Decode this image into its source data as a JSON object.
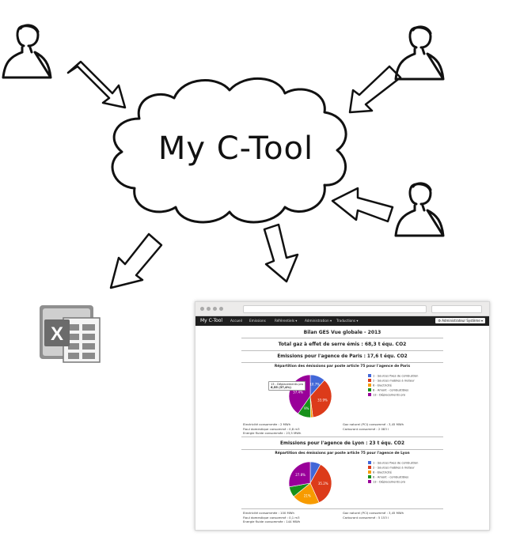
{
  "diagram": {
    "title": "My C-Tool"
  },
  "app": {
    "brand": "My C-Tool",
    "menu": [
      "Accueil",
      "Emissions",
      "Référentiels ▾",
      "Administration ▾",
      "Traductions ▾"
    ],
    "admin_button": "⚙ Administrateur Système ▾",
    "page_title": "Bilan GES Vue globale - 2013",
    "total": "Total gaz à effet de serre émis : 68,3 t équ. CO2",
    "paris": {
      "heading": "Emissions pour l'agence de Paris : 17,6 t équ. CO2",
      "chart_title": "Répartition des émissions par poste article 75 pour l'agence de Paris",
      "tooltip_line1": "13 - Déplacements pro",
      "tooltip_line2": "6,55 (37,4%)",
      "stats_left": [
        "Electricité consommée : 2 MWh",
        "Fioul domestique consommé : 0,8 m3",
        "Energie fluide consommée : 23,5 MWh"
      ],
      "stats_right": [
        "Gaz naturel (PCI) consommé : 3,45 MWh",
        "Carburant consommé : 2 083 l"
      ]
    },
    "lyon": {
      "heading": "Emissions pour l'agence de Lyon : 23 t équ. CO2",
      "chart_title": "Répartition des émissions par poste article 75 pour l'agence de Lyon",
      "stats_left": [
        "Electricité consommée : 100 MWh",
        "Fioul domestique consommé : 0,1 m3",
        "Energie fluide consommée : 144 MWh"
      ],
      "stats_right": [
        "Gaz naturel (PCI) consommé : 3,45 MWh",
        "Carburant consommé : 5 153 l"
      ]
    },
    "legend": [
      "1 - Sources fixes de combustion",
      "2 - Sources mobiles à moteur",
      "6 - Electricité",
      "8 - Amont - combustibles",
      "13 - Déplacements pro"
    ],
    "colors": {
      "blue": "#4267d8",
      "red": "#dc3b1a",
      "orange": "#f79b00",
      "green": "#17911a",
      "purple": "#990099"
    }
  },
  "chart_data": [
    {
      "type": "pie",
      "title": "Répartition des émissions par poste article 75 pour l'agence de Paris",
      "labels": [
        "1 - Sources fixes de combustion",
        "2 - Sources mobiles à moteur",
        "6 - Electricité",
        "8 - Amont - combustibles",
        "13 - Déplacements pro"
      ],
      "values": [
        10.7,
        33.9,
        1.5,
        9.3,
        37.4
      ],
      "value_labels": [
        "10.7%",
        "33.9%",
        "",
        "9%",
        "37.4%"
      ]
    },
    {
      "type": "pie",
      "title": "Répartition des émissions par poste article 75 pour l'agence de Lyon",
      "labels": [
        "1 - Sources fixes de combustion",
        "2 - Sources mobiles à moteur",
        "6 - Electricité",
        "8 - Amont - combustibles",
        "13 - Déplacements pro"
      ],
      "values": [
        8,
        35.2,
        21,
        8,
        27.8
      ],
      "value_labels": [
        "",
        "35.2%",
        "21%",
        "",
        "27.8%"
      ]
    }
  ]
}
